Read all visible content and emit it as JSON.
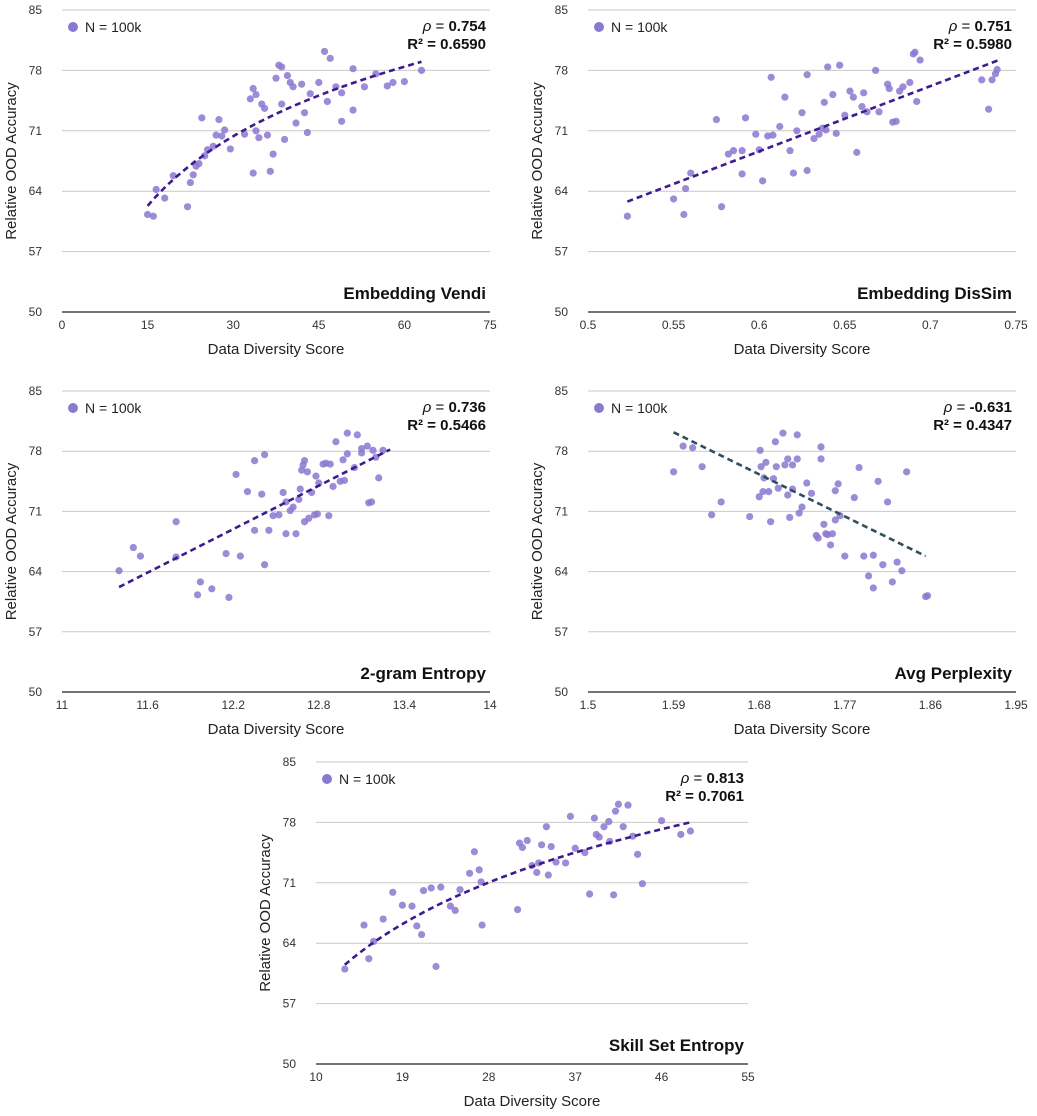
{
  "figure": {
    "ylabel": "Relative OOD Accuracy",
    "xlabel": "Data Diversity Score",
    "legend_label": "N = 100k",
    "rho_symbol": "ρ"
  },
  "chart_data": [
    {
      "type": "scatter",
      "title": "Embedding Vendi",
      "xlabel": "Data Diversity Score",
      "ylabel": "Relative OOD Accuracy",
      "legend": "N = 100k",
      "rho": "0.754",
      "r2": "R² = 0.6590",
      "xlim": [
        0,
        75
      ],
      "ylim": [
        50,
        85
      ],
      "xticks": [
        "0",
        "15",
        "30",
        "45",
        "60",
        "75"
      ],
      "yticks": [
        "50",
        "57",
        "64",
        "71",
        "78",
        "85"
      ],
      "fit": {
        "kind": "log",
        "x": [
          15,
          63
        ],
        "y": [
          62.3,
          79.0
        ],
        "color": "#3d1a8f"
      },
      "points": [
        [
          15,
          61.3
        ],
        [
          16,
          61.1
        ],
        [
          16.5,
          64.2
        ],
        [
          18,
          63.2
        ],
        [
          19.5,
          65.8
        ],
        [
          22,
          62.2
        ],
        [
          22.5,
          65.0
        ],
        [
          23,
          65.9
        ],
        [
          23.5,
          66.9
        ],
        [
          24,
          67.2
        ],
        [
          24.5,
          72.5
        ],
        [
          25,
          68.1
        ],
        [
          25.5,
          68.8
        ],
        [
          26.5,
          69.2
        ],
        [
          27,
          70.5
        ],
        [
          27.5,
          72.3
        ],
        [
          28,
          70.4
        ],
        [
          28.5,
          71.1
        ],
        [
          29.5,
          68.9
        ],
        [
          32,
          70.6
        ],
        [
          33,
          74.7
        ],
        [
          33.5,
          75.9
        ],
        [
          33.5,
          66.1
        ],
        [
          34,
          75.2
        ],
        [
          34,
          71.0
        ],
        [
          34.5,
          70.2
        ],
        [
          35,
          74.1
        ],
        [
          35.5,
          73.6
        ],
        [
          36,
          70.5
        ],
        [
          36.5,
          66.3
        ],
        [
          37,
          68.3
        ],
        [
          37.5,
          77.1
        ],
        [
          38,
          78.6
        ],
        [
          38.5,
          78.4
        ],
        [
          38.5,
          74.1
        ],
        [
          39,
          70.0
        ],
        [
          39.5,
          77.4
        ],
        [
          40,
          76.6
        ],
        [
          40.5,
          76.1
        ],
        [
          41,
          71.9
        ],
        [
          42,
          76.4
        ],
        [
          42.5,
          73.1
        ],
        [
          43,
          70.8
        ],
        [
          43.5,
          75.3
        ],
        [
          45,
          76.6
        ],
        [
          46,
          80.2
        ],
        [
          46.5,
          74.4
        ],
        [
          47,
          79.4
        ],
        [
          48,
          76.1
        ],
        [
          49,
          75.4
        ],
        [
          49,
          72.1
        ],
        [
          51,
          78.2
        ],
        [
          51,
          73.4
        ],
        [
          53,
          76.1
        ],
        [
          55,
          77.6
        ],
        [
          57,
          76.2
        ],
        [
          58,
          76.6
        ],
        [
          60,
          76.7
        ],
        [
          63,
          78.0
        ]
      ]
    },
    {
      "type": "scatter",
      "title": "Embedding DisSim",
      "xlabel": "Data Diversity Score",
      "ylabel": "Relative OOD Accuracy",
      "legend": "N = 100k",
      "rho": "0.751",
      "r2": "R² = 0.5980",
      "xlim": [
        0.5,
        0.75
      ],
      "ylim": [
        50,
        85
      ],
      "xticks": [
        "0.5",
        "0.55",
        "0.6",
        "0.65",
        "0.7",
        "0.75"
      ],
      "yticks": [
        "50",
        "57",
        "64",
        "71",
        "78",
        "85"
      ],
      "fit": {
        "kind": "linear",
        "x": [
          0.523,
          0.74
        ],
        "y": [
          62.8,
          79.2
        ],
        "color": "#3d1a8f"
      },
      "points": [
        [
          0.523,
          61.1
        ],
        [
          0.55,
          63.1
        ],
        [
          0.556,
          61.3
        ],
        [
          0.557,
          64.3
        ],
        [
          0.56,
          66.1
        ],
        [
          0.575,
          72.3
        ],
        [
          0.578,
          62.2
        ],
        [
          0.582,
          68.3
        ],
        [
          0.585,
          68.7
        ],
        [
          0.59,
          66.0
        ],
        [
          0.59,
          68.7
        ],
        [
          0.592,
          72.5
        ],
        [
          0.598,
          70.6
        ],
        [
          0.6,
          68.8
        ],
        [
          0.602,
          65.2
        ],
        [
          0.605,
          70.4
        ],
        [
          0.607,
          77.2
        ],
        [
          0.608,
          70.5
        ],
        [
          0.612,
          71.5
        ],
        [
          0.615,
          74.9
        ],
        [
          0.618,
          68.7
        ],
        [
          0.62,
          66.1
        ],
        [
          0.622,
          71.0
        ],
        [
          0.625,
          73.1
        ],
        [
          0.628,
          77.5
        ],
        [
          0.628,
          66.4
        ],
        [
          0.632,
          70.1
        ],
        [
          0.635,
          70.6
        ],
        [
          0.637,
          71.3
        ],
        [
          0.638,
          74.3
        ],
        [
          0.639,
          71.1
        ],
        [
          0.64,
          78.4
        ],
        [
          0.643,
          75.2
        ],
        [
          0.645,
          70.7
        ],
        [
          0.647,
          78.6
        ],
        [
          0.65,
          72.8
        ],
        [
          0.653,
          75.6
        ],
        [
          0.655,
          74.9
        ],
        [
          0.657,
          68.5
        ],
        [
          0.66,
          73.8
        ],
        [
          0.661,
          75.4
        ],
        [
          0.663,
          73.2
        ],
        [
          0.668,
          78.0
        ],
        [
          0.67,
          73.2
        ],
        [
          0.675,
          76.4
        ],
        [
          0.676,
          75.9
        ],
        [
          0.678,
          72.0
        ],
        [
          0.68,
          72.1
        ],
        [
          0.682,
          75.6
        ],
        [
          0.684,
          76.1
        ],
        [
          0.688,
          76.6
        ],
        [
          0.69,
          79.9
        ],
        [
          0.691,
          80.1
        ],
        [
          0.692,
          74.4
        ],
        [
          0.694,
          79.2
        ],
        [
          0.73,
          76.9
        ],
        [
          0.734,
          73.5
        ],
        [
          0.736,
          76.9
        ],
        [
          0.738,
          77.6
        ],
        [
          0.739,
          78.1
        ]
      ]
    },
    {
      "type": "scatter",
      "title": "2-gram Entropy",
      "xlabel": "Data Diversity Score",
      "ylabel": "Relative OOD Accuracy",
      "legend": "N = 100k",
      "rho": "0.736",
      "r2": "R² = 0.5466",
      "xlim": [
        11,
        14
      ],
      "ylim": [
        50,
        85
      ],
      "xticks": [
        "11",
        "11.6",
        "12.2",
        "12.8",
        "13.4",
        "14"
      ],
      "yticks": [
        "50",
        "57",
        "64",
        "71",
        "78",
        "85"
      ],
      "fit": {
        "kind": "linear",
        "x": [
          11.4,
          13.3
        ],
        "y": [
          62.2,
          78.2
        ],
        "color": "#3d1a8f"
      },
      "points": [
        [
          11.4,
          64.1
        ],
        [
          11.5,
          66.8
        ],
        [
          11.55,
          65.8
        ],
        [
          11.8,
          65.7
        ],
        [
          11.8,
          69.8
        ],
        [
          11.95,
          61.3
        ],
        [
          11.97,
          62.8
        ],
        [
          12.05,
          62.0
        ],
        [
          12.15,
          66.1
        ],
        [
          12.17,
          61.0
        ],
        [
          12.22,
          75.3
        ],
        [
          12.25,
          65.8
        ],
        [
          12.3,
          73.3
        ],
        [
          12.35,
          76.9
        ],
        [
          12.35,
          68.8
        ],
        [
          12.4,
          73.0
        ],
        [
          12.42,
          77.6
        ],
        [
          12.42,
          64.8
        ],
        [
          12.45,
          68.8
        ],
        [
          12.48,
          70.5
        ],
        [
          12.52,
          70.6
        ],
        [
          12.55,
          73.2
        ],
        [
          12.57,
          72.1
        ],
        [
          12.57,
          68.4
        ],
        [
          12.6,
          71.1
        ],
        [
          12.62,
          71.5
        ],
        [
          12.64,
          68.4
        ],
        [
          12.66,
          72.4
        ],
        [
          12.67,
          73.6
        ],
        [
          12.68,
          75.8
        ],
        [
          12.69,
          76.4
        ],
        [
          12.7,
          76.9
        ],
        [
          12.7,
          69.8
        ],
        [
          12.72,
          75.6
        ],
        [
          12.73,
          70.2
        ],
        [
          12.75,
          73.2
        ],
        [
          12.77,
          70.6
        ],
        [
          12.78,
          75.1
        ],
        [
          12.79,
          70.7
        ],
        [
          12.8,
          74.3
        ],
        [
          12.83,
          76.5
        ],
        [
          12.85,
          76.6
        ],
        [
          12.87,
          70.5
        ],
        [
          12.88,
          76.5
        ],
        [
          12.9,
          73.9
        ],
        [
          12.92,
          79.1
        ],
        [
          12.95,
          74.5
        ],
        [
          12.97,
          77.0
        ],
        [
          12.98,
          74.6
        ],
        [
          13.0,
          80.1
        ],
        [
          13.0,
          77.7
        ],
        [
          13.05,
          76.1
        ],
        [
          13.07,
          79.9
        ],
        [
          13.1,
          77.8
        ],
        [
          13.1,
          78.3
        ],
        [
          13.14,
          78.6
        ],
        [
          13.15,
          72.0
        ],
        [
          13.17,
          72.1
        ],
        [
          13.18,
          78.1
        ],
        [
          13.2,
          77.3
        ],
        [
          13.22,
          74.9
        ],
        [
          13.25,
          78.1
        ]
      ]
    },
    {
      "type": "scatter",
      "title": "Avg Perplexity",
      "xlabel": "Data Diversity Score",
      "ylabel": "Relative OOD Accuracy",
      "legend": "N = 100k",
      "rho": "-0.631",
      "r2": "R² = 0.4347",
      "xlim": [
        1.5,
        1.95
      ],
      "ylim": [
        50,
        85
      ],
      "xticks": [
        "1.5",
        "1.59",
        "1.68",
        "1.77",
        "1.86",
        "1.95"
      ],
      "yticks": [
        "50",
        "57",
        "64",
        "71",
        "78",
        "85"
      ],
      "fit": {
        "kind": "linear",
        "x": [
          1.59,
          1.855
        ],
        "y": [
          80.2,
          65.8
        ],
        "color": "#2f4f5f"
      },
      "points": [
        [
          1.59,
          75.6
        ],
        [
          1.6,
          78.6
        ],
        [
          1.61,
          78.4
        ],
        [
          1.62,
          76.2
        ],
        [
          1.63,
          70.6
        ],
        [
          1.64,
          72.1
        ],
        [
          1.67,
          70.4
        ],
        [
          1.68,
          72.7
        ],
        [
          1.681,
          78.1
        ],
        [
          1.682,
          76.2
        ],
        [
          1.684,
          73.3
        ],
        [
          1.685,
          74.9
        ],
        [
          1.687,
          76.7
        ],
        [
          1.69,
          73.3
        ],
        [
          1.692,
          69.8
        ],
        [
          1.695,
          74.8
        ],
        [
          1.697,
          79.1
        ],
        [
          1.698,
          76.2
        ],
        [
          1.7,
          73.7
        ],
        [
          1.705,
          80.1
        ],
        [
          1.707,
          76.4
        ],
        [
          1.71,
          77.1
        ],
        [
          1.71,
          72.9
        ],
        [
          1.712,
          70.3
        ],
        [
          1.715,
          76.4
        ],
        [
          1.715,
          73.6
        ],
        [
          1.72,
          77.1
        ],
        [
          1.72,
          79.9
        ],
        [
          1.722,
          70.8
        ],
        [
          1.725,
          71.5
        ],
        [
          1.73,
          74.3
        ],
        [
          1.735,
          73.1
        ],
        [
          1.74,
          68.2
        ],
        [
          1.742,
          67.9
        ],
        [
          1.745,
          78.5
        ],
        [
          1.745,
          77.1
        ],
        [
          1.748,
          69.5
        ],
        [
          1.75,
          68.4
        ],
        [
          1.752,
          68.3
        ],
        [
          1.755,
          67.1
        ],
        [
          1.757,
          68.4
        ],
        [
          1.76,
          73.4
        ],
        [
          1.76,
          70.0
        ],
        [
          1.763,
          74.2
        ],
        [
          1.765,
          70.5
        ],
        [
          1.77,
          65.8
        ],
        [
          1.78,
          72.6
        ],
        [
          1.785,
          76.1
        ],
        [
          1.79,
          65.8
        ],
        [
          1.795,
          63.5
        ],
        [
          1.8,
          65.9
        ],
        [
          1.8,
          62.1
        ],
        [
          1.805,
          74.5
        ],
        [
          1.81,
          64.8
        ],
        [
          1.815,
          72.1
        ],
        [
          1.82,
          62.8
        ],
        [
          1.825,
          65.1
        ],
        [
          1.83,
          64.1
        ],
        [
          1.835,
          75.6
        ],
        [
          1.855,
          61.1
        ],
        [
          1.857,
          61.2
        ]
      ]
    },
    {
      "type": "scatter",
      "title": "Skill Set Entropy",
      "xlabel": "Data Diversity Score",
      "ylabel": "Relative OOD Accuracy",
      "legend": "N = 100k",
      "rho": "0.813",
      "r2": "R² = 0.7061",
      "xlim": [
        10,
        55
      ],
      "ylim": [
        50,
        85
      ],
      "xticks": [
        "10",
        "19",
        "28",
        "37",
        "46",
        "55"
      ],
      "yticks": [
        "50",
        "57",
        "64",
        "71",
        "78",
        "85"
      ],
      "fit": {
        "kind": "log",
        "x": [
          13,
          49
        ],
        "y": [
          61.5,
          78.0
        ],
        "color": "#3d1a8f"
      },
      "points": [
        [
          13,
          61.0
        ],
        [
          15,
          66.1
        ],
        [
          15.5,
          62.2
        ],
        [
          16,
          64.2
        ],
        [
          17,
          66.8
        ],
        [
          18,
          69.9
        ],
        [
          19,
          68.4
        ],
        [
          20,
          68.3
        ],
        [
          20.5,
          66.0
        ],
        [
          21,
          65.0
        ],
        [
          21.2,
          70.1
        ],
        [
          22,
          70.4
        ],
        [
          22.5,
          61.3
        ],
        [
          23,
          70.5
        ],
        [
          24,
          68.3
        ],
        [
          24.5,
          67.8
        ],
        [
          25,
          70.2
        ],
        [
          26,
          72.1
        ],
        [
          26.5,
          74.6
        ],
        [
          27,
          72.5
        ],
        [
          27.2,
          71.1
        ],
        [
          27.3,
          66.1
        ],
        [
          31,
          67.9
        ],
        [
          31.2,
          75.6
        ],
        [
          31.5,
          75.1
        ],
        [
          32,
          75.9
        ],
        [
          32.5,
          73.0
        ],
        [
          33,
          72.2
        ],
        [
          33.2,
          73.3
        ],
        [
          33.5,
          75.4
        ],
        [
          34,
          77.5
        ],
        [
          34.2,
          71.9
        ],
        [
          34.5,
          75.2
        ],
        [
          35,
          73.4
        ],
        [
          36,
          73.3
        ],
        [
          36.5,
          78.7
        ],
        [
          37,
          75.0
        ],
        [
          38,
          74.5
        ],
        [
          38.5,
          69.7
        ],
        [
          39,
          78.5
        ],
        [
          39.2,
          76.6
        ],
        [
          39.5,
          76.3
        ],
        [
          40,
          77.5
        ],
        [
          40.5,
          78.1
        ],
        [
          40.6,
          75.8
        ],
        [
          41,
          69.6
        ],
        [
          41.2,
          79.3
        ],
        [
          41.5,
          80.1
        ],
        [
          42,
          77.5
        ],
        [
          42.5,
          80.0
        ],
        [
          43,
          76.4
        ],
        [
          43.5,
          74.3
        ],
        [
          44,
          70.9
        ],
        [
          46,
          78.2
        ],
        [
          48,
          76.6
        ],
        [
          49,
          77.0
        ]
      ]
    }
  ]
}
